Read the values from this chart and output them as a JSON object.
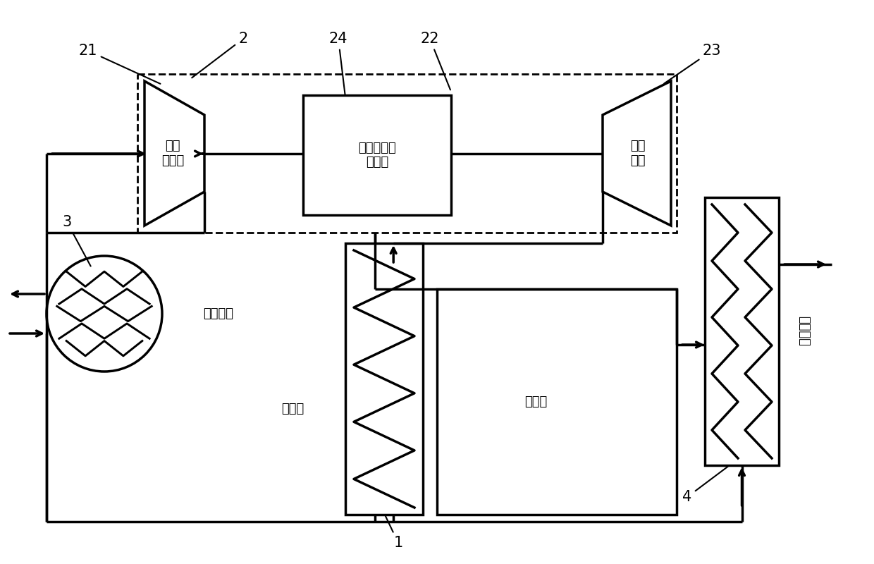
{
  "bg_color": "#ffffff",
  "lc": "#000000",
  "lw": 2.5,
  "lw_thin": 1.5,
  "chinese": {
    "centrifugal": "离心\n压缩机",
    "motor": "永磁同步高\n速电机",
    "turbine": "消化\n心机",
    "water_cooler": "水冷却器",
    "heat_exchanger": "换热器",
    "back_cooler": "回冷器",
    "cold_output": "冷量输出"
  },
  "label_fs": 15,
  "chinese_fs": 13,
  "dpi": 100,
  "fig_w": 12.4,
  "fig_h": 8.0
}
